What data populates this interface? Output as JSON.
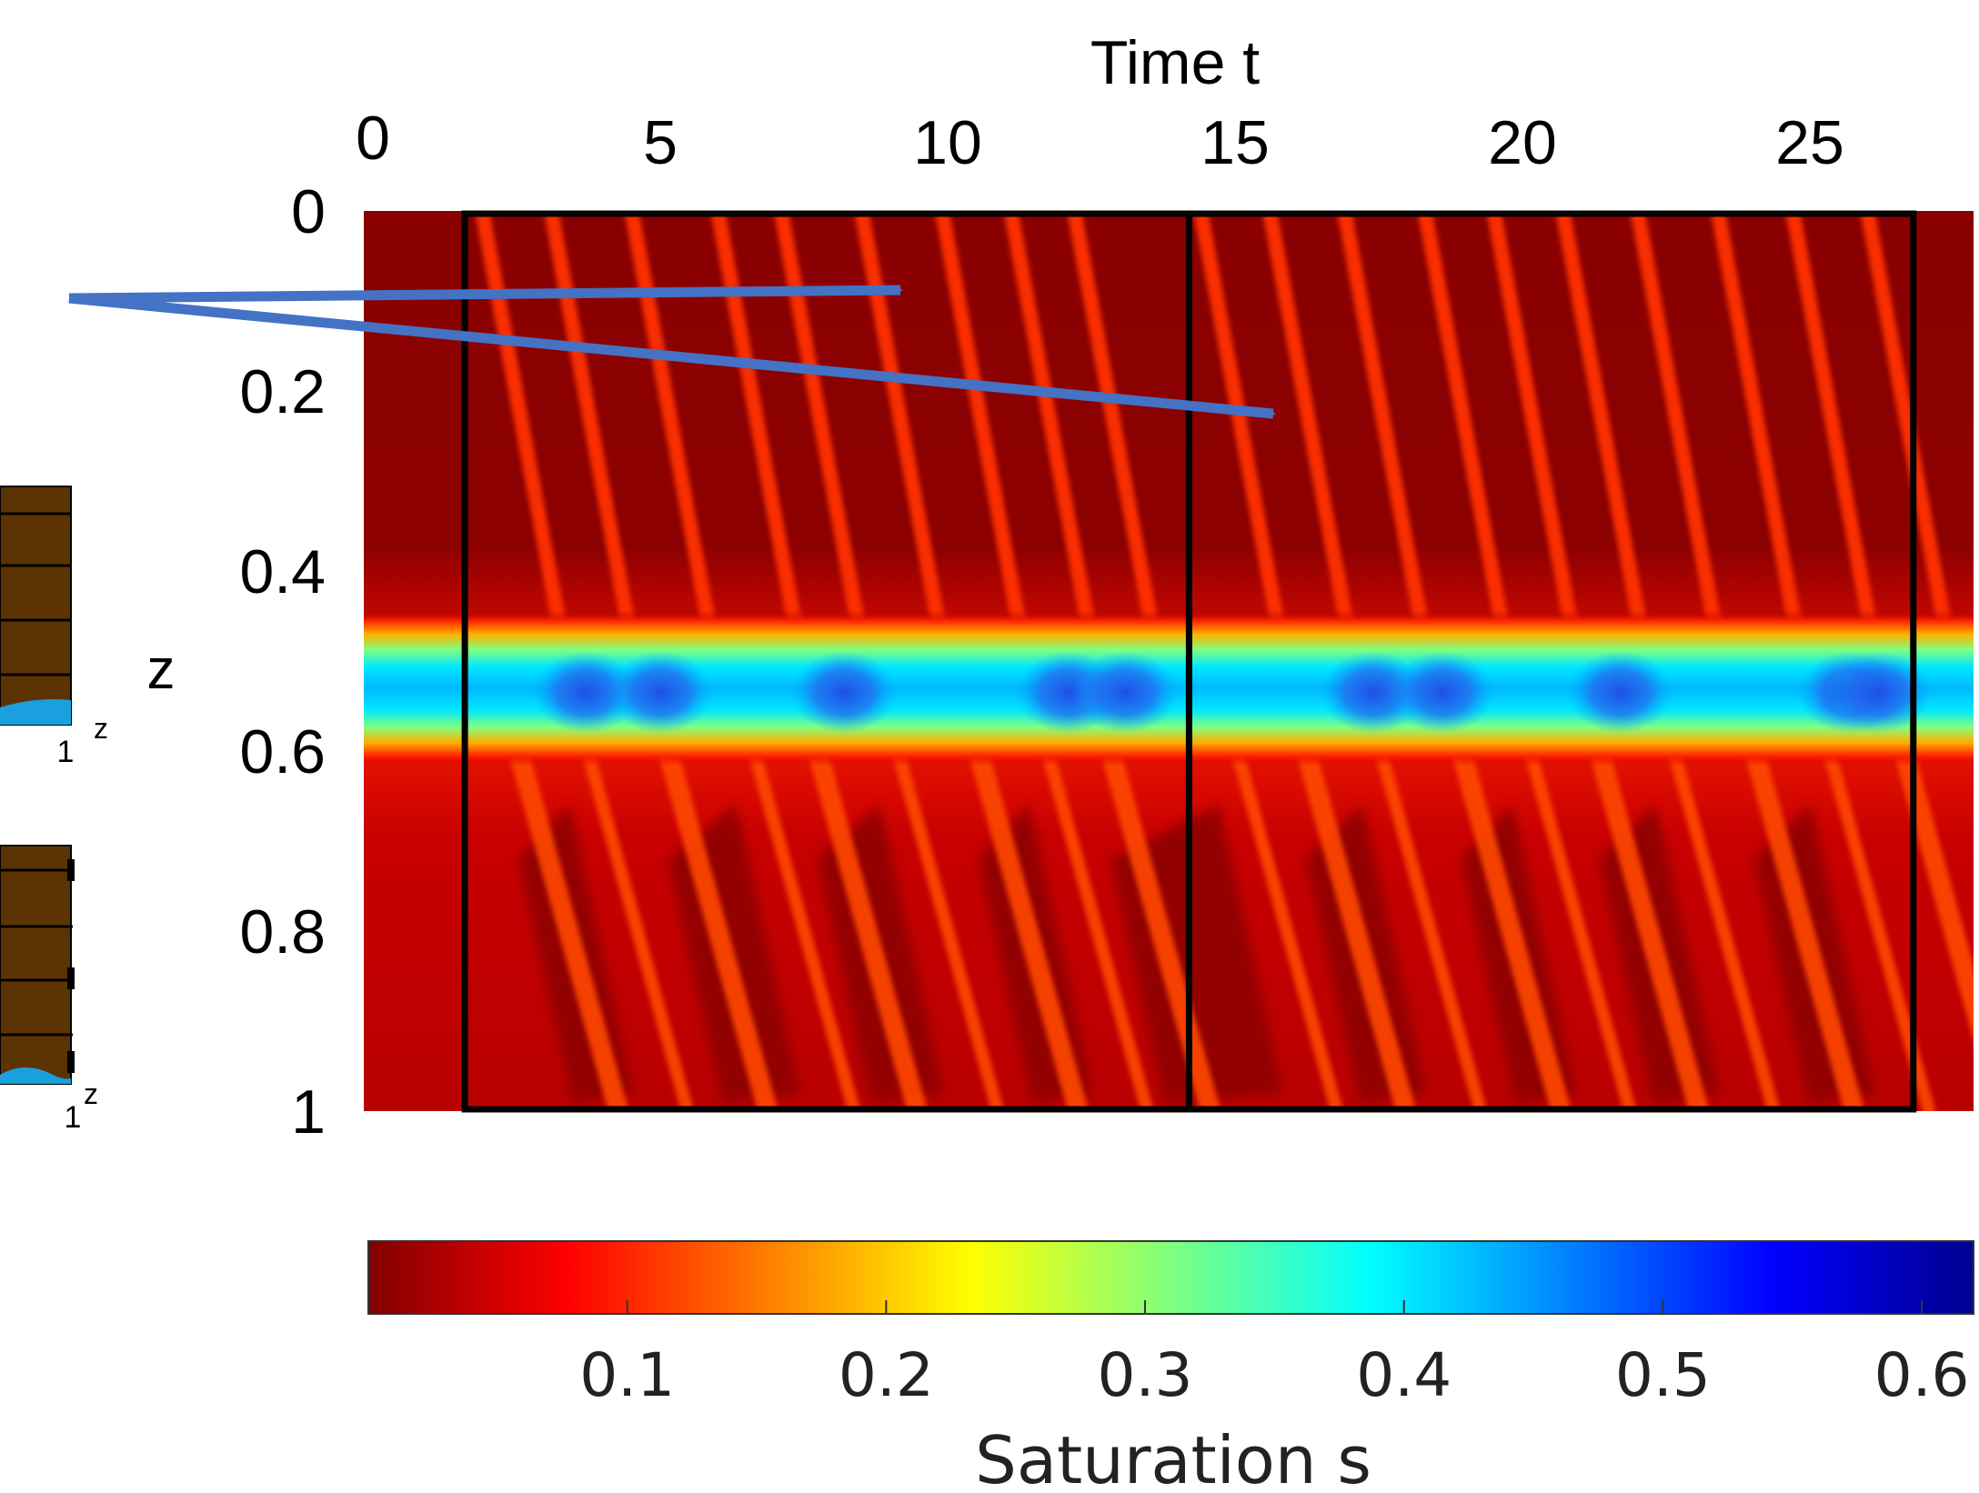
{
  "chart_data": {
    "type": "heatmap",
    "title": "",
    "xlabel": "Time t",
    "ylabel": "z",
    "x_ticks": [
      "0",
      "5",
      "10",
      "15",
      "20",
      "25"
    ],
    "y_ticks": [
      "0",
      "0.2",
      "0.4",
      "0.6",
      "0.8",
      "1"
    ],
    "xlim": [
      0,
      27.5
    ],
    "ylim": [
      0,
      1
    ],
    "y_axis": "reversed",
    "colormap": "jet",
    "colorbar": {
      "label": "Saturation s",
      "ticks": [
        "0.1",
        "0.2",
        "0.3",
        "0.4",
        "0.5",
        "0.6"
      ],
      "range": [
        0,
        0.62
      ]
    },
    "periods_boxed": [
      [
        1.6,
        14.2
      ],
      [
        14.2,
        26.8
      ]
    ],
    "finger_times": [
      1.9,
      3.1,
      4.5,
      6.0,
      7.1,
      8.5,
      9.9,
      11.1,
      12.2,
      14.4,
      15.6,
      16.9,
      18.3,
      19.5,
      20.7,
      22.0,
      23.4,
      24.7,
      26.0
    ],
    "blob_times": [
      3.7,
      5.0,
      8.2,
      12.1,
      13.1,
      17.4,
      18.6,
      21.7,
      25.7,
      26.2
    ],
    "layers": [
      {
        "z_range": [
          0,
          0.46
        ],
        "material": "coarse",
        "color": "#5c3404"
      },
      {
        "z_range": [
          0.46,
          0.6
        ],
        "material": "fine",
        "color": "#dfcfb0"
      },
      {
        "z_range": [
          0.6,
          1
        ],
        "material": "coarse",
        "color": "#5c3404"
      }
    ],
    "annotation_arrows": 2
  },
  "inset": {
    "tick_label": "1",
    "axis_label": "z"
  },
  "colors": {
    "arrow": "#4472c4",
    "frame": "#000000",
    "soil_dark": "#5c3404",
    "soil_light": "#dfcfb0",
    "sat_low": "#800000",
    "sat_high": "#00008f"
  }
}
